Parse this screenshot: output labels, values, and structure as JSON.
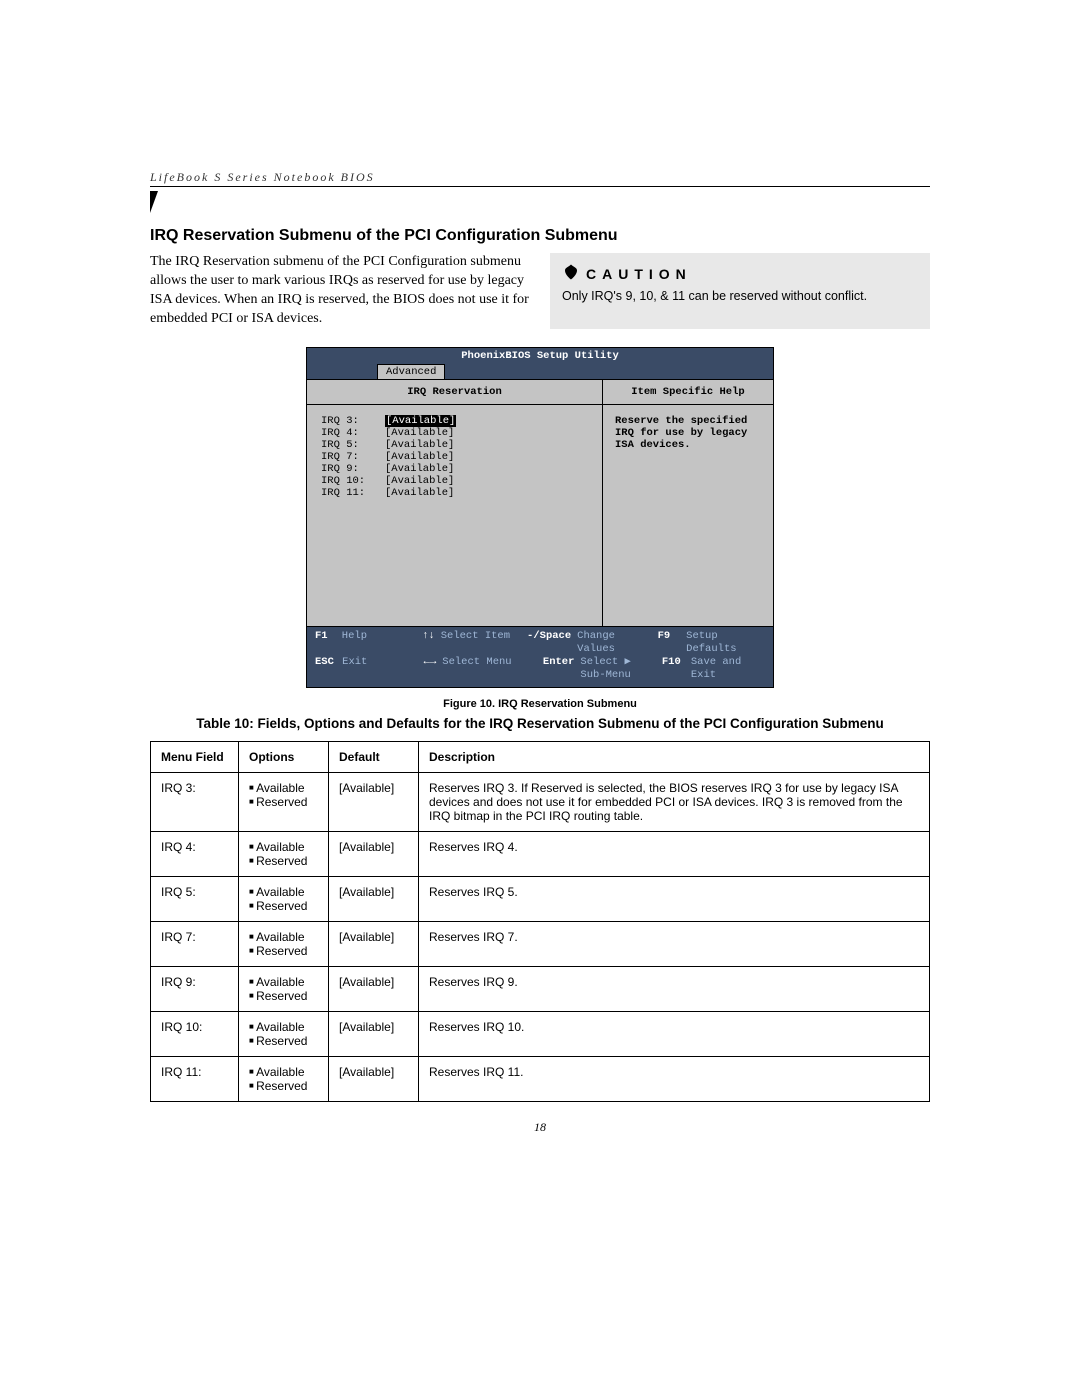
{
  "header": "LifeBook S Series Notebook BIOS",
  "section_title": "IRQ Reservation Submenu of the PCI Configuration Submenu",
  "intro": "The IRQ Reservation submenu of the PCI Configuration submenu allows the user to mark various IRQs as reserved for use by legacy ISA devices. When an IRQ is reserved, the BIOS does not use it for embedded PCI or ISA devices.",
  "caution": {
    "label": "CAUTION",
    "text": "Only IRQ's 9, 10, & 11 can be reserved without conflict."
  },
  "bios": {
    "title": "PhoenixBIOS Setup Utility",
    "tab": "Advanced",
    "left_head": "IRQ Reservation",
    "right_head": "Item Specific Help",
    "help_text": "Reserve the specified IRQ for use by legacy ISA devices.",
    "items": [
      {
        "label": "IRQ 3:",
        "value": "[Available]",
        "selected": true
      },
      {
        "label": "IRQ 4:",
        "value": "[Available]",
        "selected": false
      },
      {
        "label": "IRQ 5:",
        "value": "[Available]",
        "selected": false
      },
      {
        "label": "IRQ 7:",
        "value": "[Available]",
        "selected": false
      },
      {
        "label": "IRQ 9:",
        "value": "[Available]",
        "selected": false
      },
      {
        "label": "IRQ 10:",
        "value": "[Available]",
        "selected": false
      },
      {
        "label": "IRQ 11:",
        "value": "[Available]",
        "selected": false
      }
    ],
    "footer": {
      "r1": {
        "k1": "F1",
        "t1": "Help",
        "k2": "↑↓",
        "t2": "Select Item",
        "k3": "-/Space",
        "t3": "Change Values",
        "k4": "F9",
        "t4": "Setup Defaults"
      },
      "r2": {
        "k1": "ESC",
        "t1": "Exit",
        "k2": "←→",
        "t2": "Select Menu",
        "k3": "Enter",
        "t3": "Select ▶ Sub-Menu",
        "k4": "F10",
        "t4": "Save and Exit"
      }
    }
  },
  "figure_caption": "Figure 10.   IRQ Reservation Submenu",
  "table_title": "Table 10: Fields, Options and Defaults for the IRQ Reservation Submenu of the PCI Configuration Submenu",
  "table": {
    "headers": [
      "Menu Field",
      "Options",
      "Default",
      "Description"
    ],
    "options": [
      "Available",
      "Reserved"
    ],
    "rows": [
      {
        "field": "IRQ 3:",
        "default": "[Available]",
        "desc": "Reserves IRQ 3. If Reserved is selected, the BIOS reserves IRQ 3 for use by legacy ISA devices and does not use it for embedded PCI or ISA devices. IRQ 3 is removed from the IRQ bitmap in the PCI IRQ routing table."
      },
      {
        "field": "IRQ 4:",
        "default": "[Available]",
        "desc": "Reserves IRQ 4."
      },
      {
        "field": "IRQ 5:",
        "default": "[Available]",
        "desc": "Reserves IRQ 5."
      },
      {
        "field": "IRQ 7:",
        "default": "[Available]",
        "desc": "Reserves IRQ 7."
      },
      {
        "field": "IRQ 9:",
        "default": "[Available]",
        "desc": "Reserves IRQ 9."
      },
      {
        "field": "IRQ 10:",
        "default": "[Available]",
        "desc": "Reserves IRQ 10."
      },
      {
        "field": "IRQ 11:",
        "default": "[Available]",
        "desc": "Reserves IRQ 11."
      }
    ]
  },
  "page_number": "18"
}
